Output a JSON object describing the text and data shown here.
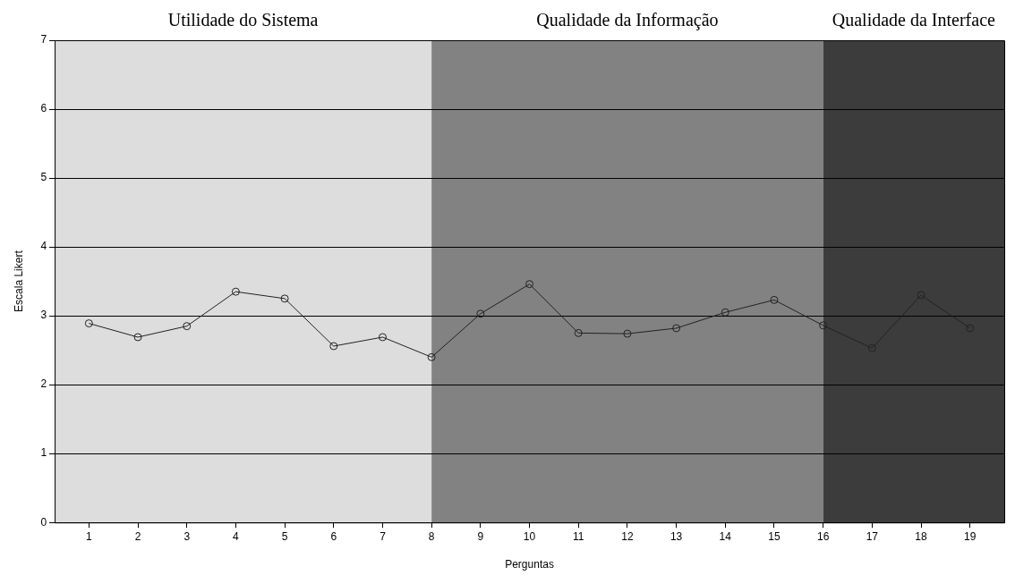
{
  "chart_data": {
    "type": "line",
    "xlabel": "Perguntas",
    "ylabel": "Escala Likert",
    "x": [
      1,
      2,
      3,
      4,
      5,
      6,
      7,
      8,
      9,
      10,
      11,
      12,
      13,
      14,
      15,
      16,
      17,
      18,
      19
    ],
    "series": [
      {
        "color": "#222222",
        "values": [
          2.89,
          2.69,
          2.85,
          3.35,
          3.25,
          2.56,
          2.69,
          2.4,
          3.03,
          3.46,
          2.75,
          2.74,
          2.82,
          3.05,
          3.23,
          2.86,
          2.53,
          3.3,
          2.82
        ]
      }
    ],
    "xlim": [
      0.3,
      19.7
    ],
    "xticks": [
      1,
      2,
      3,
      4,
      5,
      6,
      7,
      8,
      9,
      10,
      11,
      12,
      13,
      14,
      15,
      16,
      17,
      18,
      19
    ],
    "ylim": [
      0,
      7
    ],
    "yticks": [
      0,
      1,
      2,
      3,
      4,
      5,
      6,
      7
    ],
    "bands": [
      {
        "axis": "x",
        "from": 0.3,
        "to": 8,
        "label": "Utilidade do Sistema",
        "color": "#dddddd"
      },
      {
        "axis": "x",
        "from": 8,
        "to": 16,
        "label": "Qualidade da Informação",
        "color": "#828282"
      },
      {
        "axis": "x",
        "from": 16,
        "to": 19.7,
        "label": "Qualidade da Interface",
        "color": "#3c3c3c"
      }
    ],
    "grid": "y",
    "legend": false,
    "marker": "circle",
    "line_style": "solid"
  }
}
